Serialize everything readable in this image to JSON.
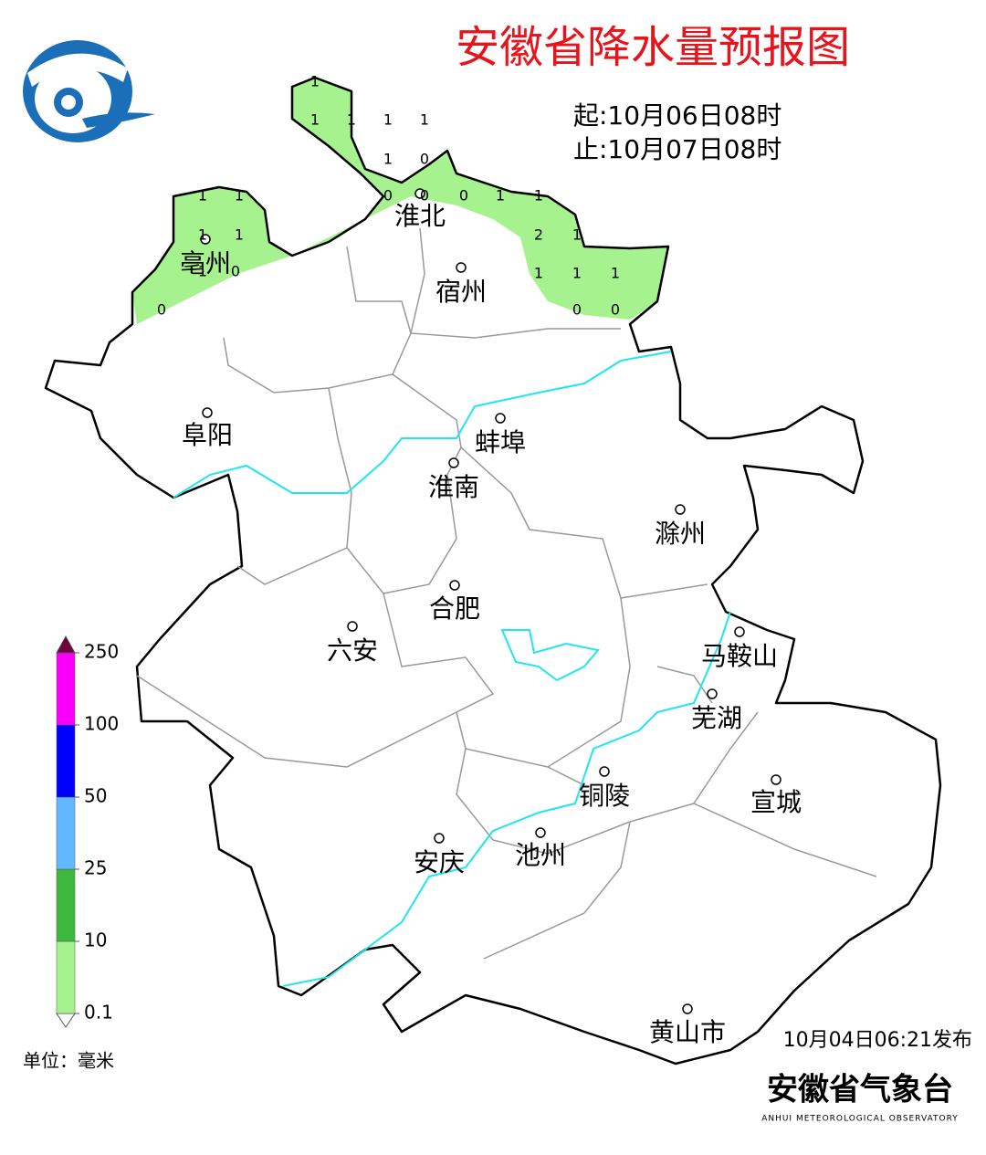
{
  "title": "安徽省降水量预报图",
  "period": {
    "start": "起:10月06日08时",
    "end": "止:10月07日08时"
  },
  "cities": [
    "淮北",
    "亳州",
    "宿州",
    "阜阳",
    "蚌埠",
    "淮南",
    "滁州",
    "合肥",
    "六安",
    "马鞍山",
    "芜湖",
    "宣城",
    "铜陵",
    "池州",
    "安庆",
    "黄山市"
  ],
  "station_values": [
    1,
    1,
    1,
    1,
    1,
    1,
    0,
    0,
    0,
    0,
    1,
    1,
    1,
    1,
    1,
    1,
    1,
    0,
    2,
    1,
    1,
    1,
    1,
    0,
    0,
    0
  ],
  "legend": {
    "ticks": [
      0.1,
      10,
      25,
      50,
      100,
      250
    ],
    "colors": [
      "#a6f28f",
      "#3dba3d",
      "#61b8ff",
      "#0000fe",
      "#fa00fa",
      "#730040"
    ],
    "unit": "单位：毫米"
  },
  "issued": "10月04日06:21发布",
  "org": "安徽省气象台",
  "org_en": "ANHUI METEOROLOGICAL OBSERVATORY"
}
